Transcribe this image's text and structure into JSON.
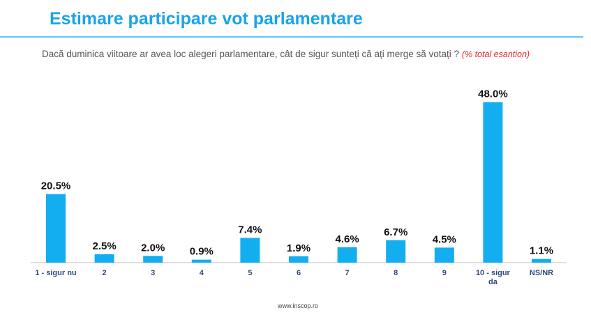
{
  "header": {
    "title": "Estimare participare vot parlamentare"
  },
  "question": {
    "text": "Dacă duminica viitoare ar avea loc alegeri parlamentare, cât de sigur sunteți că ați merge să votați ? ",
    "note": "(% total esantion)"
  },
  "footer": {
    "source": "www.inscop.ro"
  },
  "colors": {
    "bar": "#12aef0",
    "axis": "#bfbfbf",
    "title": "#1aa3e8",
    "category_label": "#2e4a7a"
  },
  "chart_data": {
    "type": "bar",
    "categories": [
      "1 - sigur nu",
      "2",
      "3",
      "4",
      "5",
      "6",
      "7",
      "8",
      "9",
      "10 - sigur da",
      "NS/NR"
    ],
    "values": [
      20.5,
      2.5,
      2.0,
      0.9,
      7.4,
      1.9,
      4.6,
      6.7,
      4.5,
      48.0,
      1.1
    ],
    "data_labels": [
      "20.5%",
      "2.5%",
      "2.0%",
      "0.9%",
      "7.4%",
      "1.9%",
      "4.6%",
      "6.7%",
      "4.5%",
      "48.0%",
      "1.1%"
    ],
    "ylim": [
      0,
      50
    ],
    "grid": false,
    "legend": "none"
  }
}
